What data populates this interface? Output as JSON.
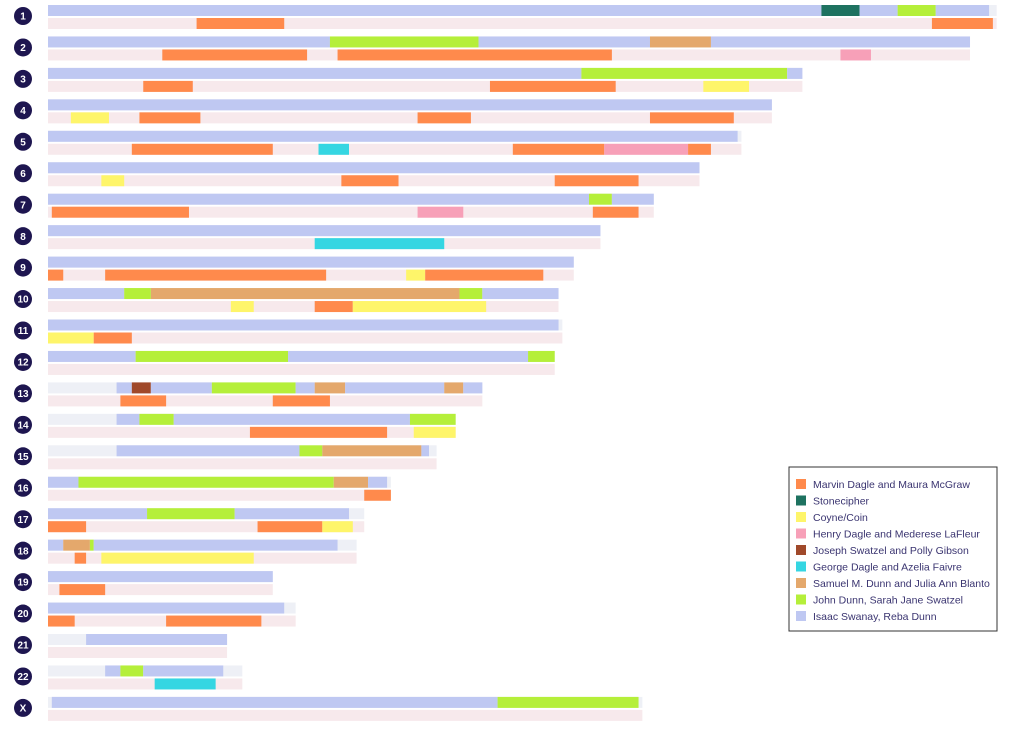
{
  "chart_data": {
    "type": "chromosome-painting",
    "series": [
      {
        "name": "Marvin Dagle and Maura McGraw",
        "color": "#ff8a4c"
      },
      {
        "name": "Stonecipher",
        "color": "#1e7260"
      },
      {
        "name": "Coyne/Coin",
        "color": "#fef56a"
      },
      {
        "name": "Henry Dagle and Mederese LaFleur",
        "color": "#f7a0b8"
      },
      {
        "name": "Joseph Swatzel and Polly Gibson",
        "color": "#a0492a"
      },
      {
        "name": "George Dagle and Azelia Faivre",
        "color": "#35d6e2"
      },
      {
        "name": "Samuel M. Dunn and Julia Ann Blanto",
        "color": "#e4a86c"
      },
      {
        "name": "John Dunn, Sarah Jane Swatzel",
        "color": "#b5ef3a"
      },
      {
        "name": "Isaac Swanay, Reba Dunn",
        "color": "#bfc8f2"
      }
    ],
    "chromosomes": [
      {
        "label": "1",
        "length": 249,
        "paternal": [
          {
            "start": 0,
            "end": 203,
            "ancestor": "Isaac Swanay, Reba Dunn"
          },
          {
            "start": 203,
            "end": 213,
            "ancestor": "Stonecipher"
          },
          {
            "start": 213,
            "end": 223,
            "ancestor": "Isaac Swanay, Reba Dunn"
          },
          {
            "start": 223,
            "end": 233,
            "ancestor": "John Dunn, Sarah Jane Swatzel"
          },
          {
            "start": 233,
            "end": 247,
            "ancestor": "Isaac Swanay, Reba Dunn"
          }
        ],
        "maternal": [
          {
            "start": 39,
            "end": 62,
            "ancestor": "Marvin Dagle and Maura McGraw"
          },
          {
            "start": 232,
            "end": 248,
            "ancestor": "Marvin Dagle and Maura McGraw"
          }
        ]
      },
      {
        "label": "2",
        "length": 242,
        "paternal": [
          {
            "start": 0,
            "end": 74,
            "ancestor": "Isaac Swanay, Reba Dunn"
          },
          {
            "start": 74,
            "end": 113,
            "ancestor": "John Dunn, Sarah Jane Swatzel"
          },
          {
            "start": 113,
            "end": 158,
            "ancestor": "Isaac Swanay, Reba Dunn"
          },
          {
            "start": 158,
            "end": 174,
            "ancestor": "Samuel M. Dunn and Julia Ann Blanto"
          },
          {
            "start": 174,
            "end": 242,
            "ancestor": "Isaac Swanay, Reba Dunn"
          }
        ],
        "maternal": [
          {
            "start": 30,
            "end": 68,
            "ancestor": "Marvin Dagle and Maura McGraw"
          },
          {
            "start": 76,
            "end": 148,
            "ancestor": "Marvin Dagle and Maura McGraw"
          },
          {
            "start": 208,
            "end": 216,
            "ancestor": "Henry Dagle and Mederese LaFleur"
          }
        ]
      },
      {
        "label": "3",
        "length": 198,
        "paternal": [
          {
            "start": 0,
            "end": 140,
            "ancestor": "Isaac Swanay, Reba Dunn"
          },
          {
            "start": 140,
            "end": 194,
            "ancestor": "John Dunn, Sarah Jane Swatzel"
          },
          {
            "start": 194,
            "end": 198,
            "ancestor": "Isaac Swanay, Reba Dunn"
          }
        ],
        "maternal": [
          {
            "start": 25,
            "end": 38,
            "ancestor": "Marvin Dagle and Maura McGraw"
          },
          {
            "start": 116,
            "end": 149,
            "ancestor": "Marvin Dagle and Maura McGraw"
          },
          {
            "start": 172,
            "end": 184,
            "ancestor": "Coyne/Coin"
          }
        ]
      },
      {
        "label": "4",
        "length": 190,
        "paternal": [
          {
            "start": 0,
            "end": 190,
            "ancestor": "Isaac Swanay, Reba Dunn"
          }
        ],
        "maternal": [
          {
            "start": 6,
            "end": 16,
            "ancestor": "Coyne/Coin"
          },
          {
            "start": 24,
            "end": 40,
            "ancestor": "Marvin Dagle and Maura McGraw"
          },
          {
            "start": 97,
            "end": 111,
            "ancestor": "Marvin Dagle and Maura McGraw"
          },
          {
            "start": 158,
            "end": 180,
            "ancestor": "Marvin Dagle and Maura McGraw"
          }
        ]
      },
      {
        "label": "5",
        "length": 182,
        "paternal": [
          {
            "start": 0,
            "end": 181,
            "ancestor": "Isaac Swanay, Reba Dunn"
          }
        ],
        "maternal": [
          {
            "start": 22,
            "end": 59,
            "ancestor": "Marvin Dagle and Maura McGraw"
          },
          {
            "start": 71,
            "end": 79,
            "ancestor": "George Dagle and Azelia Faivre"
          },
          {
            "start": 122,
            "end": 146,
            "ancestor": "Marvin Dagle and Maura McGraw"
          },
          {
            "start": 146,
            "end": 168,
            "ancestor": "Henry Dagle and Mederese LaFleur"
          },
          {
            "start": 168,
            "end": 174,
            "ancestor": "Marvin Dagle and Maura McGraw"
          }
        ]
      },
      {
        "label": "6",
        "length": 171,
        "paternal": [
          {
            "start": 0,
            "end": 171,
            "ancestor": "Isaac Swanay, Reba Dunn"
          }
        ],
        "maternal": [
          {
            "start": 14,
            "end": 20,
            "ancestor": "Coyne/Coin"
          },
          {
            "start": 77,
            "end": 92,
            "ancestor": "Marvin Dagle and Maura McGraw"
          },
          {
            "start": 133,
            "end": 155,
            "ancestor": "Marvin Dagle and Maura McGraw"
          }
        ]
      },
      {
        "label": "7",
        "length": 159,
        "paternal": [
          {
            "start": 0,
            "end": 142,
            "ancestor": "Isaac Swanay, Reba Dunn"
          },
          {
            "start": 142,
            "end": 148,
            "ancestor": "John Dunn, Sarah Jane Swatzel"
          },
          {
            "start": 148,
            "end": 159,
            "ancestor": "Isaac Swanay, Reba Dunn"
          }
        ],
        "maternal": [
          {
            "start": 1,
            "end": 37,
            "ancestor": "Marvin Dagle and Maura McGraw"
          },
          {
            "start": 97,
            "end": 109,
            "ancestor": "Henry Dagle and Mederese LaFleur"
          },
          {
            "start": 143,
            "end": 155,
            "ancestor": "Marvin Dagle and Maura McGraw"
          }
        ]
      },
      {
        "label": "8",
        "length": 145,
        "paternal": [
          {
            "start": 0,
            "end": 145,
            "ancestor": "Isaac Swanay, Reba Dunn"
          }
        ],
        "maternal": [
          {
            "start": 70,
            "end": 104,
            "ancestor": "George Dagle and Azelia Faivre"
          }
        ]
      },
      {
        "label": "9",
        "length": 138,
        "paternal": [
          {
            "start": 0,
            "end": 138,
            "ancestor": "Isaac Swanay, Reba Dunn"
          }
        ],
        "maternal": [
          {
            "start": 0,
            "end": 4,
            "ancestor": "Marvin Dagle and Maura McGraw"
          },
          {
            "start": 15,
            "end": 73,
            "ancestor": "Marvin Dagle and Maura McGraw"
          },
          {
            "start": 94,
            "end": 99,
            "ancestor": "Coyne/Coin"
          },
          {
            "start": 99,
            "end": 130,
            "ancestor": "Marvin Dagle and Maura McGraw"
          }
        ]
      },
      {
        "label": "10",
        "length": 134,
        "paternal": [
          {
            "start": 0,
            "end": 20,
            "ancestor": "Isaac Swanay, Reba Dunn"
          },
          {
            "start": 20,
            "end": 27,
            "ancestor": "John Dunn, Sarah Jane Swatzel"
          },
          {
            "start": 27,
            "end": 108,
            "ancestor": "Samuel M. Dunn and Julia Ann Blanto"
          },
          {
            "start": 108,
            "end": 114,
            "ancestor": "John Dunn, Sarah Jane Swatzel"
          },
          {
            "start": 114,
            "end": 134,
            "ancestor": "Isaac Swanay, Reba Dunn"
          }
        ],
        "maternal": [
          {
            "start": 48,
            "end": 54,
            "ancestor": "Coyne/Coin"
          },
          {
            "start": 70,
            "end": 80,
            "ancestor": "Marvin Dagle and Maura McGraw"
          },
          {
            "start": 80,
            "end": 115,
            "ancestor": "Coyne/Coin"
          }
        ]
      },
      {
        "label": "11",
        "length": 135,
        "paternal": [
          {
            "start": 0,
            "end": 134,
            "ancestor": "Isaac Swanay, Reba Dunn"
          }
        ],
        "maternal": [
          {
            "start": 0,
            "end": 12,
            "ancestor": "Coyne/Coin"
          },
          {
            "start": 12,
            "end": 22,
            "ancestor": "Marvin Dagle and Maura McGraw"
          }
        ]
      },
      {
        "label": "12",
        "length": 133,
        "paternal": [
          {
            "start": 0,
            "end": 23,
            "ancestor": "Isaac Swanay, Reba Dunn"
          },
          {
            "start": 23,
            "end": 63,
            "ancestor": "John Dunn, Sarah Jane Swatzel"
          },
          {
            "start": 63,
            "end": 126,
            "ancestor": "Isaac Swanay, Reba Dunn"
          },
          {
            "start": 126,
            "end": 133,
            "ancestor": "John Dunn, Sarah Jane Swatzel"
          }
        ],
        "maternal": []
      },
      {
        "label": "13",
        "length": 114,
        "paternal": [
          {
            "start": 18,
            "end": 22,
            "ancestor": "Isaac Swanay, Reba Dunn"
          },
          {
            "start": 22,
            "end": 27,
            "ancestor": "Joseph Swatzel and Polly Gibson"
          },
          {
            "start": 27,
            "end": 43,
            "ancestor": "Isaac Swanay, Reba Dunn"
          },
          {
            "start": 43,
            "end": 65,
            "ancestor": "John Dunn, Sarah Jane Swatzel"
          },
          {
            "start": 65,
            "end": 70,
            "ancestor": "Isaac Swanay, Reba Dunn"
          },
          {
            "start": 70,
            "end": 78,
            "ancestor": "Samuel M. Dunn and Julia Ann Blanto"
          },
          {
            "start": 78,
            "end": 104,
            "ancestor": "Isaac Swanay, Reba Dunn"
          },
          {
            "start": 104,
            "end": 109,
            "ancestor": "Samuel M. Dunn and Julia Ann Blanto"
          },
          {
            "start": 109,
            "end": 114,
            "ancestor": "Isaac Swanay, Reba Dunn"
          }
        ],
        "maternal": [
          {
            "start": 19,
            "end": 31,
            "ancestor": "Marvin Dagle and Maura McGraw"
          },
          {
            "start": 59,
            "end": 74,
            "ancestor": "Marvin Dagle and Maura McGraw"
          }
        ]
      },
      {
        "label": "14",
        "length": 107,
        "paternal": [
          {
            "start": 18,
            "end": 24,
            "ancestor": "Isaac Swanay, Reba Dunn"
          },
          {
            "start": 24,
            "end": 33,
            "ancestor": "John Dunn, Sarah Jane Swatzel"
          },
          {
            "start": 33,
            "end": 95,
            "ancestor": "Isaac Swanay, Reba Dunn"
          },
          {
            "start": 95,
            "end": 107,
            "ancestor": "John Dunn, Sarah Jane Swatzel"
          }
        ],
        "maternal": [
          {
            "start": 53,
            "end": 89,
            "ancestor": "Marvin Dagle and Maura McGraw"
          },
          {
            "start": 96,
            "end": 107,
            "ancestor": "Coyne/Coin"
          }
        ]
      },
      {
        "label": "15",
        "length": 102,
        "paternal": [
          {
            "start": 18,
            "end": 66,
            "ancestor": "Isaac Swanay, Reba Dunn"
          },
          {
            "start": 66,
            "end": 72,
            "ancestor": "John Dunn, Sarah Jane Swatzel"
          },
          {
            "start": 72,
            "end": 98,
            "ancestor": "Samuel M. Dunn and Julia Ann Blanto"
          },
          {
            "start": 98,
            "end": 100,
            "ancestor": "Isaac Swanay, Reba Dunn"
          }
        ],
        "maternal": []
      },
      {
        "label": "16",
        "length": 90,
        "paternal": [
          {
            "start": 0,
            "end": 8,
            "ancestor": "Isaac Swanay, Reba Dunn"
          },
          {
            "start": 8,
            "end": 75,
            "ancestor": "John Dunn, Sarah Jane Swatzel"
          },
          {
            "start": 75,
            "end": 84,
            "ancestor": "Samuel M. Dunn and Julia Ann Blanto"
          },
          {
            "start": 84,
            "end": 89,
            "ancestor": "Isaac Swanay, Reba Dunn"
          }
        ],
        "maternal": [
          {
            "start": 83,
            "end": 90,
            "ancestor": "Marvin Dagle and Maura McGraw"
          }
        ]
      },
      {
        "label": "17",
        "length": 83,
        "paternal": [
          {
            "start": 0,
            "end": 26,
            "ancestor": "Isaac Swanay, Reba Dunn"
          },
          {
            "start": 26,
            "end": 49,
            "ancestor": "John Dunn, Sarah Jane Swatzel"
          },
          {
            "start": 49,
            "end": 79,
            "ancestor": "Isaac Swanay, Reba Dunn"
          }
        ],
        "maternal": [
          {
            "start": 0,
            "end": 10,
            "ancestor": "Marvin Dagle and Maura McGraw"
          },
          {
            "start": 55,
            "end": 72,
            "ancestor": "Marvin Dagle and Maura McGraw"
          },
          {
            "start": 72,
            "end": 80,
            "ancestor": "Coyne/Coin"
          }
        ]
      },
      {
        "label": "18",
        "length": 81,
        "paternal": [
          {
            "start": 0,
            "end": 4,
            "ancestor": "Isaac Swanay, Reba Dunn"
          },
          {
            "start": 4,
            "end": 11,
            "ancestor": "Samuel M. Dunn and Julia Ann Blanto"
          },
          {
            "start": 11,
            "end": 12,
            "ancestor": "John Dunn, Sarah Jane Swatzel"
          },
          {
            "start": 12,
            "end": 76,
            "ancestor": "Isaac Swanay, Reba Dunn"
          }
        ],
        "maternal": [
          {
            "start": 7,
            "end": 10,
            "ancestor": "Marvin Dagle and Maura McGraw"
          },
          {
            "start": 14,
            "end": 54,
            "ancestor": "Coyne/Coin"
          }
        ]
      },
      {
        "label": "19",
        "length": 59,
        "paternal": [
          {
            "start": 0,
            "end": 59,
            "ancestor": "Isaac Swanay, Reba Dunn"
          }
        ],
        "maternal": [
          {
            "start": 3,
            "end": 15,
            "ancestor": "Marvin Dagle and Maura McGraw"
          }
        ]
      },
      {
        "label": "20",
        "length": 65,
        "paternal": [
          {
            "start": 0,
            "end": 62,
            "ancestor": "Isaac Swanay, Reba Dunn"
          }
        ],
        "maternal": [
          {
            "start": 0,
            "end": 7,
            "ancestor": "Marvin Dagle and Maura McGraw"
          },
          {
            "start": 31,
            "end": 56,
            "ancestor": "Marvin Dagle and Maura McGraw"
          }
        ]
      },
      {
        "label": "21",
        "length": 47,
        "paternal": [
          {
            "start": 10,
            "end": 47,
            "ancestor": "Isaac Swanay, Reba Dunn"
          }
        ],
        "maternal": []
      },
      {
        "label": "22",
        "length": 51,
        "paternal": [
          {
            "start": 15,
            "end": 19,
            "ancestor": "Isaac Swanay, Reba Dunn"
          },
          {
            "start": 19,
            "end": 25,
            "ancestor": "John Dunn, Sarah Jane Swatzel"
          },
          {
            "start": 25,
            "end": 46,
            "ancestor": "Isaac Swanay, Reba Dunn"
          }
        ],
        "maternal": [
          {
            "start": 28,
            "end": 44,
            "ancestor": "George Dagle and Azelia Faivre"
          }
        ]
      },
      {
        "label": "X",
        "length": 156,
        "paternal": [
          {
            "start": 1,
            "end": 118,
            "ancestor": "Isaac Swanay, Reba Dunn"
          },
          {
            "start": 118,
            "end": 155,
            "ancestor": "John Dunn, Sarah Jane Swatzel"
          }
        ],
        "maternal": []
      }
    ]
  }
}
